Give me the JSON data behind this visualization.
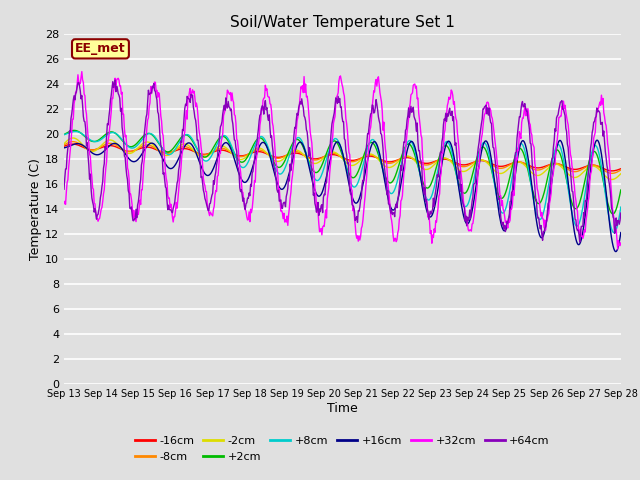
{
  "title": "Soil/Water Temperature Set 1",
  "xlabel": "Time",
  "ylabel": "Temperature (C)",
  "ylim": [
    0,
    28
  ],
  "background_color": "#e0e0e0",
  "series": [
    {
      "label": "-16cm",
      "color": "#ff0000"
    },
    {
      "label": "-8cm",
      "color": "#ff8800"
    },
    {
      "label": "-2cm",
      "color": "#dddd00"
    },
    {
      "label": "+2cm",
      "color": "#00bb00"
    },
    {
      "label": "+8cm",
      "color": "#00cccc"
    },
    {
      "label": "+16cm",
      "color": "#000088"
    },
    {
      "label": "+32cm",
      "color": "#ff00ff"
    },
    {
      "label": "+64cm",
      "color": "#8800bb"
    }
  ],
  "xtick_labels": [
    "Sep 13",
    "Sep 14",
    "Sep 15",
    "Sep 16",
    "Sep 17",
    "Sep 18",
    "Sep 19",
    "Sep 20",
    "Sep 21",
    "Sep 22",
    "Sep 23",
    "Sep 24",
    "Sep 25",
    "Sep 26",
    "Sep 27",
    "Sep 28"
  ],
  "ytick_values": [
    0,
    2,
    4,
    6,
    8,
    10,
    12,
    14,
    16,
    18,
    20,
    22,
    24,
    26,
    28
  ],
  "annotation_text": "EE_met",
  "annotation_color": "#8b0000",
  "annotation_bg": "#ffff99"
}
